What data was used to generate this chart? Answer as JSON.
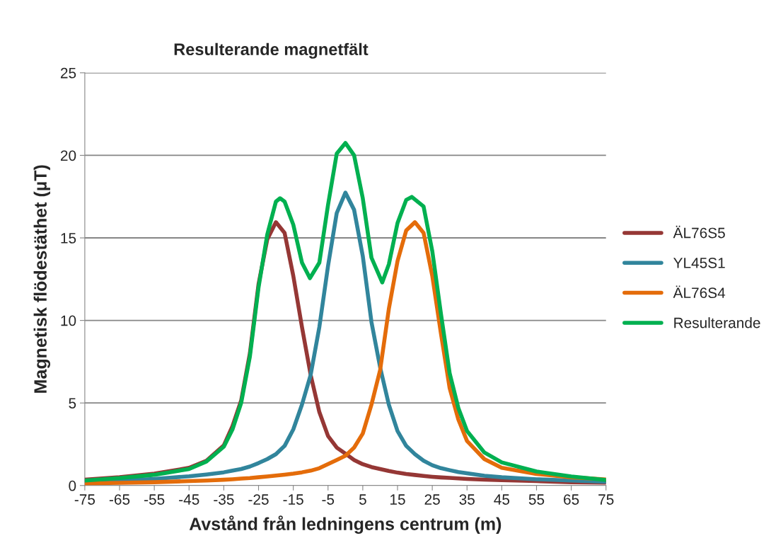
{
  "chart_data": {
    "type": "line",
    "title": "Resulterande magnetfält",
    "xlabel": "Avstånd från ledningens centrum (m)",
    "ylabel": "Magnetisk flödestäthet (µT)",
    "x": [
      -75,
      -65,
      -55,
      -45,
      -40,
      -35,
      -32.5,
      -30,
      -27.5,
      -25,
      -22.5,
      -20,
      -17.5,
      -15,
      -12.5,
      -10,
      -7.5,
      -5,
      -2.5,
      0,
      2.5,
      5,
      7.5,
      10,
      12.5,
      15,
      17.5,
      20,
      22.5,
      25,
      27.5,
      30,
      32.5,
      35,
      40,
      45,
      55,
      65,
      75
    ],
    "series": [
      {
        "name": "ÄL76S5",
        "color": "#953735",
        "values": [
          0.36,
          0.5,
          0.72,
          1.07,
          1.5,
          2.43,
          3.6,
          5.15,
          8.0,
          12.2,
          14.9,
          15.95,
          15.3,
          12.7,
          9.6,
          6.7,
          4.45,
          3.0,
          2.3,
          1.93,
          1.55,
          1.29,
          1.12,
          1.0,
          0.88,
          0.78,
          0.7,
          0.64,
          0.58,
          0.53,
          0.49,
          0.46,
          0.43,
          0.4,
          0.36,
          0.32,
          0.27,
          0.2,
          0.17
        ]
      },
      {
        "name": "YL45S1",
        "color": "#31859c",
        "values": [
          0.25,
          0.3,
          0.4,
          0.56,
          0.67,
          0.8,
          0.9,
          1.0,
          1.15,
          1.36,
          1.6,
          1.9,
          2.4,
          3.4,
          4.9,
          6.7,
          9.6,
          13.3,
          16.5,
          17.74,
          16.7,
          13.9,
          9.9,
          7.15,
          4.9,
          3.3,
          2.4,
          1.9,
          1.5,
          1.23,
          1.05,
          0.93,
          0.82,
          0.74,
          0.59,
          0.5,
          0.38,
          0.3,
          0.23
        ]
      },
      {
        "name": "ÄL76S4",
        "color": "#e46c0a",
        "values": [
          0.13,
          0.16,
          0.2,
          0.27,
          0.3,
          0.35,
          0.38,
          0.42,
          0.45,
          0.5,
          0.55,
          0.6,
          0.66,
          0.72,
          0.8,
          0.9,
          1.05,
          1.3,
          1.55,
          1.8,
          2.3,
          3.15,
          4.9,
          7.0,
          10.7,
          13.6,
          15.45,
          15.95,
          15.3,
          12.7,
          9.2,
          5.9,
          4.0,
          2.7,
          1.6,
          1.07,
          0.7,
          0.5,
          0.37
        ]
      },
      {
        "name": "Resulterande",
        "color": "#00b050",
        "x": [
          -75,
          -65,
          -55,
          -45,
          -40,
          -35,
          -32.5,
          -30,
          -27.5,
          -25,
          -22.5,
          -20,
          -18.8,
          -17.5,
          -15,
          -12.5,
          -10.2,
          -7.5,
          -5,
          -2.5,
          0,
          2.5,
          5,
          7.5,
          10.6,
          12.5,
          15,
          17.5,
          19.1,
          22.5,
          25,
          27.5,
          30,
          32.5,
          35,
          40,
          45,
          55,
          65,
          75
        ],
        "values": [
          0.3,
          0.45,
          0.65,
          1.0,
          1.45,
          2.35,
          3.4,
          5.0,
          7.8,
          12.0,
          15.2,
          17.2,
          17.4,
          17.2,
          15.8,
          13.5,
          12.56,
          13.5,
          17.0,
          20.1,
          20.75,
          20.0,
          17.4,
          13.8,
          12.3,
          13.4,
          15.9,
          17.3,
          17.48,
          16.9,
          14.2,
          10.4,
          6.8,
          4.7,
          3.3,
          2.0,
          1.4,
          0.85,
          0.55,
          0.33
        ]
      }
    ],
    "xlim": [
      -75,
      75
    ],
    "xticks": [
      -75,
      -65,
      -55,
      -45,
      -35,
      -25,
      -15,
      -5,
      5,
      15,
      25,
      35,
      45,
      55,
      65,
      75
    ],
    "ylim": [
      0,
      25
    ],
    "yticks": [
      0,
      5,
      10,
      15,
      20,
      25
    ],
    "grid": "y",
    "legend": "right",
    "marker": "none",
    "line_style": "solid"
  }
}
